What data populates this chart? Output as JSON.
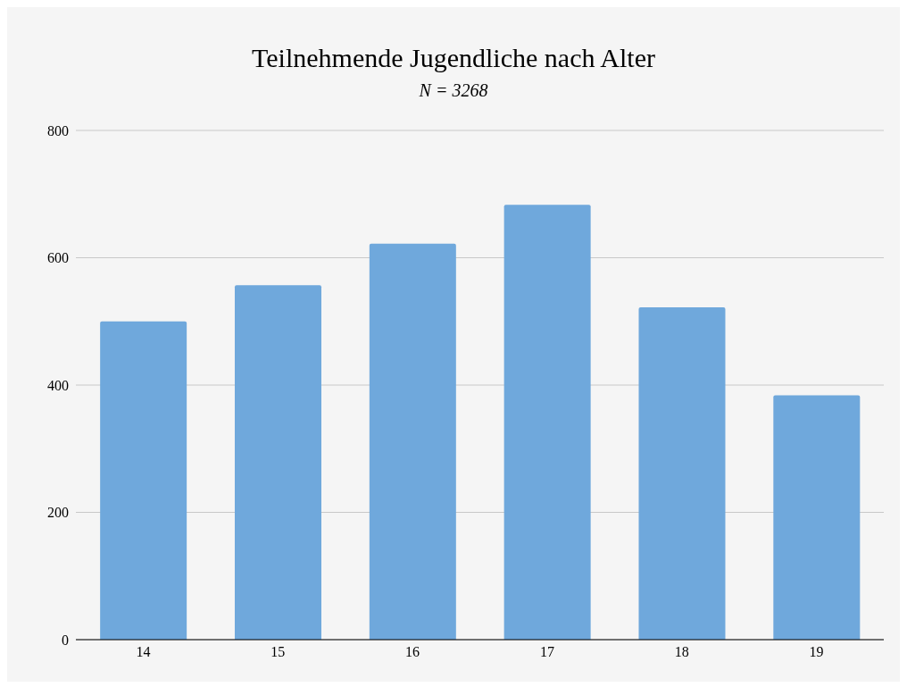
{
  "chart_data": {
    "type": "bar",
    "title": "Teilnehmende Jugendliche nach Alter",
    "subtitle": "N = 3268",
    "categories": [
      "14",
      "15",
      "16",
      "17",
      "18",
      "19"
    ],
    "values": [
      500,
      557,
      622,
      683,
      522,
      384
    ],
    "color": "#6fa8dc",
    "ylim": [
      0,
      800
    ],
    "yticks": [
      0,
      200,
      400,
      600,
      800
    ],
    "grid": "y"
  }
}
